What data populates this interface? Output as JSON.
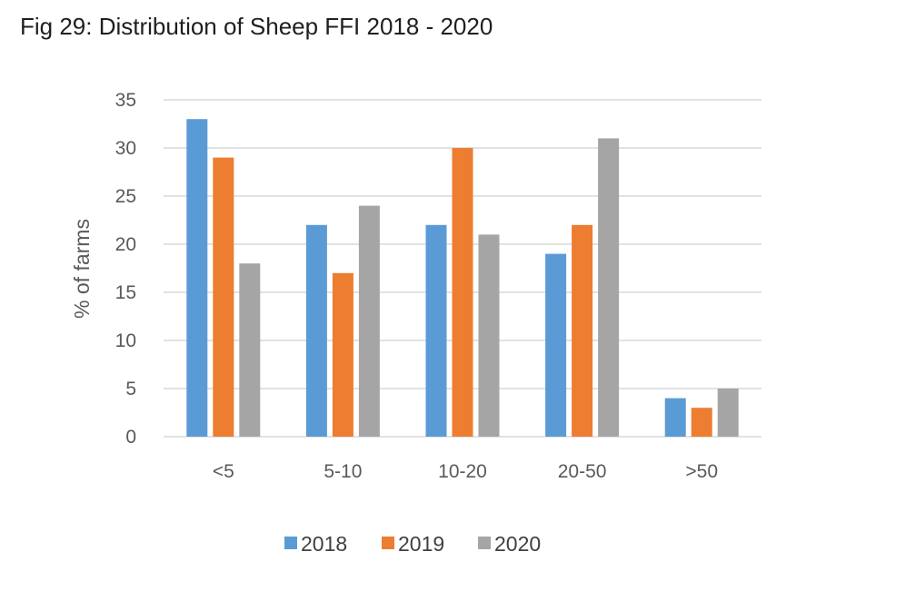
{
  "figure_title": "Fig 29: Distribution of Sheep FFI 2018 - 2020",
  "chart_data": {
    "type": "bar",
    "title": "Fig 29: Distribution of Sheep FFI 2018 - 2020",
    "xlabel": "",
    "ylabel": "% of farms",
    "categories": [
      "<5",
      "5-10",
      "10-20",
      "20-50",
      ">50"
    ],
    "series": [
      {
        "name": "2018",
        "color": "#5B9BD5",
        "values": [
          33,
          22,
          22,
          19,
          4
        ]
      },
      {
        "name": "2019",
        "color": "#ED7D31",
        "values": [
          29,
          17,
          30,
          22,
          3
        ]
      },
      {
        "name": "2020",
        "color": "#A5A5A5",
        "values": [
          18,
          24,
          21,
          31,
          5
        ]
      }
    ],
    "ylim": [
      0,
      35
    ],
    "yticks": [
      0,
      5,
      10,
      15,
      20,
      25,
      30,
      35
    ],
    "grid": true,
    "legend_position": "bottom"
  }
}
